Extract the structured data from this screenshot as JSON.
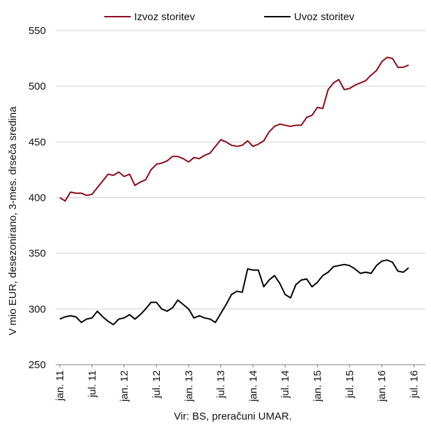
{
  "chart_data": {
    "type": "line",
    "ylabel": "V mio EUR, desezonirano, 3-mes. drseča sredina",
    "xlabel": "",
    "source": "Vir: BS, preračuni UMAR.",
    "ylim": [
      250,
      550
    ],
    "yticks": [
      "250",
      "300",
      "350",
      "400",
      "450",
      "500",
      "550"
    ],
    "xticks": [
      "jan. 11",
      "jul. 11",
      "jan. 12",
      "jul. 12",
      "jan. 13",
      "jul. 13",
      "jan. 14",
      "jul. 14",
      "jan. 15",
      "jul. 15",
      "jan. 16",
      "jul. 16"
    ],
    "grid": "horizontal",
    "legend": "top",
    "x": [
      "2011-01",
      "2011-02",
      "2011-03",
      "2011-04",
      "2011-05",
      "2011-06",
      "2011-07",
      "2011-08",
      "2011-09",
      "2011-10",
      "2011-11",
      "2011-12",
      "2012-01",
      "2012-02",
      "2012-03",
      "2012-04",
      "2012-05",
      "2012-06",
      "2012-07",
      "2012-08",
      "2012-09",
      "2012-10",
      "2012-11",
      "2012-12",
      "2013-01",
      "2013-02",
      "2013-03",
      "2013-04",
      "2013-05",
      "2013-06",
      "2013-07",
      "2013-08",
      "2013-09",
      "2013-10",
      "2013-11",
      "2013-12",
      "2014-01",
      "2014-02",
      "2014-03",
      "2014-04",
      "2014-05",
      "2014-06",
      "2014-07",
      "2014-08",
      "2014-09",
      "2014-10",
      "2014-11",
      "2014-12",
      "2015-01",
      "2015-02",
      "2015-03",
      "2015-04",
      "2015-05",
      "2015-06",
      "2015-07",
      "2015-08",
      "2015-09",
      "2015-10",
      "2015-11",
      "2015-12",
      "2016-01",
      "2016-02",
      "2016-03",
      "2016-04",
      "2016-05",
      "2016-06"
    ],
    "series": [
      {
        "name": "Izvoz storitev",
        "color": "#8b0a1a",
        "values": [
          400,
          397,
          405,
          404,
          404,
          402,
          403,
          409,
          415,
          421,
          420,
          423,
          419,
          421,
          411,
          414,
          416,
          425,
          430,
          431,
          433,
          437,
          437,
          435,
          432,
          436,
          435,
          438,
          440,
          446,
          452,
          450,
          447,
          446,
          447,
          451,
          446,
          448,
          451,
          459,
          464,
          466,
          465,
          464,
          465,
          465,
          472,
          474,
          481,
          480,
          497,
          503,
          506,
          497,
          498,
          501,
          503,
          505,
          510,
          514,
          522,
          526,
          525,
          517,
          517,
          519
        ]
      },
      {
        "name": "Uvoz storitev",
        "color": "#000000",
        "values": [
          291,
          293,
          294,
          293,
          288,
          291,
          292,
          298,
          293,
          289,
          286,
          291,
          292,
          295,
          291,
          295,
          300,
          306,
          306,
          300,
          298,
          301,
          308,
          304,
          300,
          292,
          294,
          292,
          291,
          288,
          296,
          304,
          313,
          316,
          315,
          336,
          335,
          335,
          320,
          326,
          330,
          323,
          313,
          310,
          322,
          326,
          327,
          320,
          324,
          330,
          333,
          338,
          339,
          340,
          339,
          336,
          332,
          333,
          332,
          339,
          343,
          344,
          342,
          334,
          333,
          337
        ]
      }
    ]
  }
}
